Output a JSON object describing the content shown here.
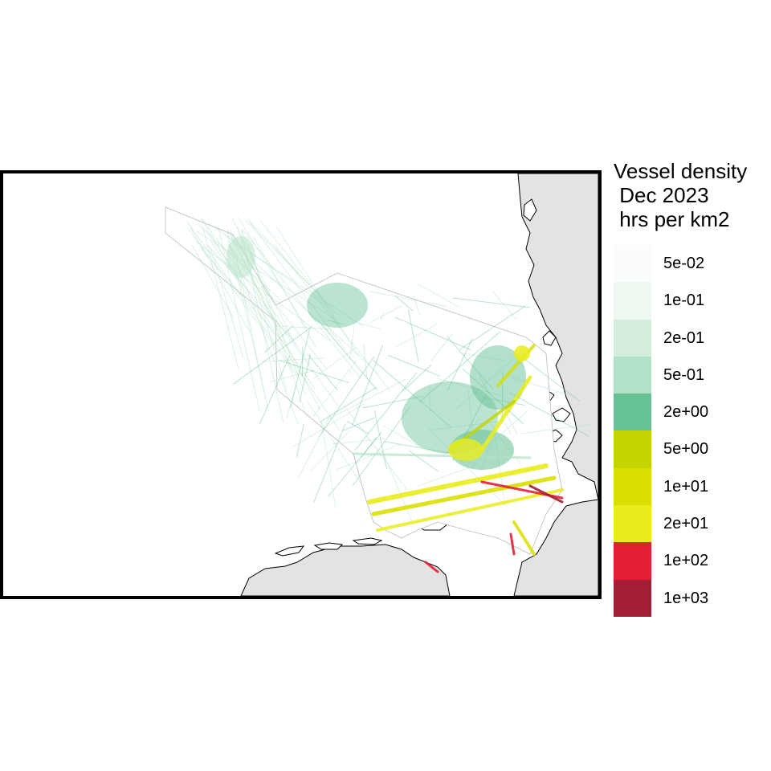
{
  "legend": {
    "title": "Vessel density\n Dec 2023\n hrs per km2",
    "items": [
      {
        "label": "5e-02",
        "color": "#FAFDFB"
      },
      {
        "label": "1e-01",
        "color": "#EEF8F0"
      },
      {
        "label": "2e-01",
        "color": "#D2EEDB"
      },
      {
        "label": "5e-01",
        "color": "#B1E1C6"
      },
      {
        "label": "2e+00",
        "color": "#66C196"
      },
      {
        "label": "5e+00",
        "color": "#C3D401"
      },
      {
        "label": "1e+01",
        "color": "#D9DF00"
      },
      {
        "label": "2e+01",
        "color": "#E9EC1B"
      },
      {
        "label": "1e+02",
        "color": "#E21F35"
      },
      {
        "label": "1e+03",
        "color": "#A51D32"
      }
    ]
  },
  "colors": {
    "land": "#E3E3E3",
    "frame": "#000000",
    "coastline": "#000000"
  }
}
